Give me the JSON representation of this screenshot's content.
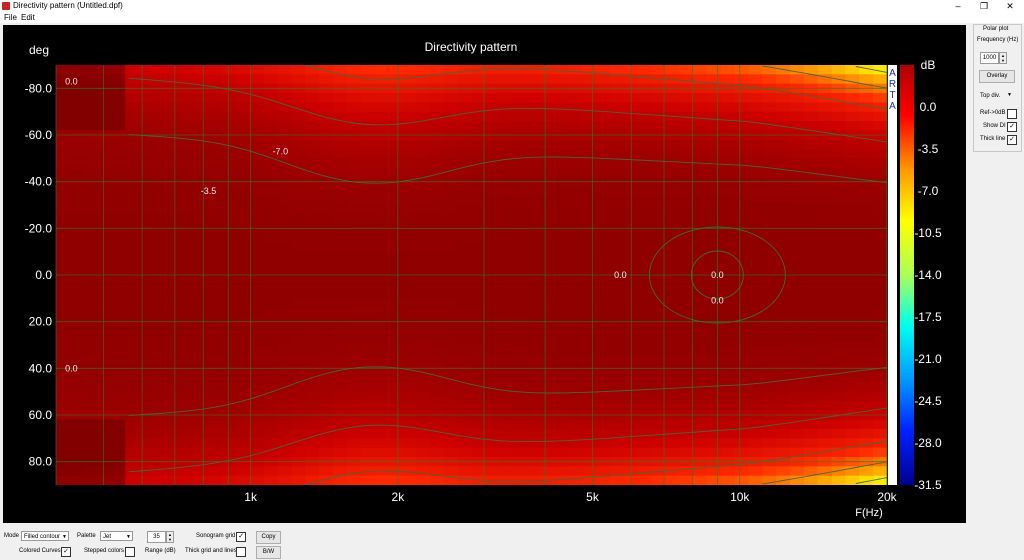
{
  "window": {
    "title": "Directivity pattern (Untitled.dpf)",
    "min_label": "–",
    "max_label": "❐",
    "close_label": "✕"
  },
  "menu": {
    "file": "File",
    "edit": "Edit"
  },
  "chart_data": {
    "type": "heatmap",
    "title": "Directivity pattern",
    "ylabel": "deg",
    "xlabel": "F(Hz)",
    "x_scale": "log",
    "xlim": [
      400,
      20000
    ],
    "ylim": [
      -90,
      90
    ],
    "x_ticks": [
      {
        "value": 1000,
        "label": "1k"
      },
      {
        "value": 2000,
        "label": "2k"
      },
      {
        "value": 5000,
        "label": "5k"
      },
      {
        "value": 10000,
        "label": "10k"
      },
      {
        "value": 20000,
        "label": "20k"
      }
    ],
    "y_ticks": [
      {
        "value": -80,
        "label": "-80.0"
      },
      {
        "value": -60,
        "label": "-60.0"
      },
      {
        "value": -40,
        "label": "-40.0"
      },
      {
        "value": -20,
        "label": "-20.0"
      },
      {
        "value": 0,
        "label": "0.0"
      },
      {
        "value": 20,
        "label": "20.0"
      },
      {
        "value": 40,
        "label": "40.0"
      },
      {
        "value": 60,
        "label": "60.0"
      },
      {
        "value": 80,
        "label": "80.0"
      }
    ],
    "colorbar": {
      "unit": "dB",
      "range": [
        -31.5,
        3.5
      ],
      "ticks": [
        "0.0",
        "-3.5",
        "-7.0",
        "-10.5",
        "-14.0",
        "-17.5",
        "-21.0",
        "-24.5",
        "-28.0",
        "-31.5"
      ],
      "watermark": [
        "A",
        "R",
        "T",
        "A"
      ]
    },
    "contour_labels": [
      {
        "f": 430,
        "deg": -83,
        "label": "0.0"
      },
      {
        "f": 1150,
        "deg": -53,
        "label": "-7.0"
      },
      {
        "f": 820,
        "deg": -36,
        "label": "-3.5"
      },
      {
        "f": 430,
        "deg": 40,
        "label": "0.0"
      },
      {
        "f": 5700,
        "deg": 0,
        "label": "0.0"
      },
      {
        "f": 9000,
        "deg": 0,
        "label": "0.0"
      },
      {
        "f": 9000,
        "deg": 11,
        "label": "0.0"
      }
    ],
    "grid": true,
    "palette": "jet"
  },
  "side_panel": {
    "polar_plot": "Polar plot",
    "frequency_label": "Frequency (Hz)",
    "frequency_value": "1000",
    "overlay_btn": "Overlay",
    "top_div": "Top div.",
    "ref_0db": "Ref->0dB",
    "ref_0db_checked": "",
    "show_di": "Show DI",
    "show_di_checked": "✓",
    "thick_line": "Thick line",
    "thick_line_checked": "✓"
  },
  "bottom": {
    "mode_label": "Mode",
    "mode_value": "Filled contour",
    "palette_label": "Palette",
    "palette_value": "Jet",
    "range_value": "35",
    "range_label": "Range (dB)",
    "sonogram_grid": "Sonogram grid",
    "sonogram_grid_checked": "✓",
    "copy_btn": "Copy",
    "colored_curves": "Colored Curves",
    "colored_curves_checked": "✓",
    "stepped_colors": "Stepped colors",
    "stepped_colors_checked": "",
    "thick_grid": "Thick grid and  lines",
    "thick_grid_checked": "",
    "bw_btn": "B/W"
  }
}
